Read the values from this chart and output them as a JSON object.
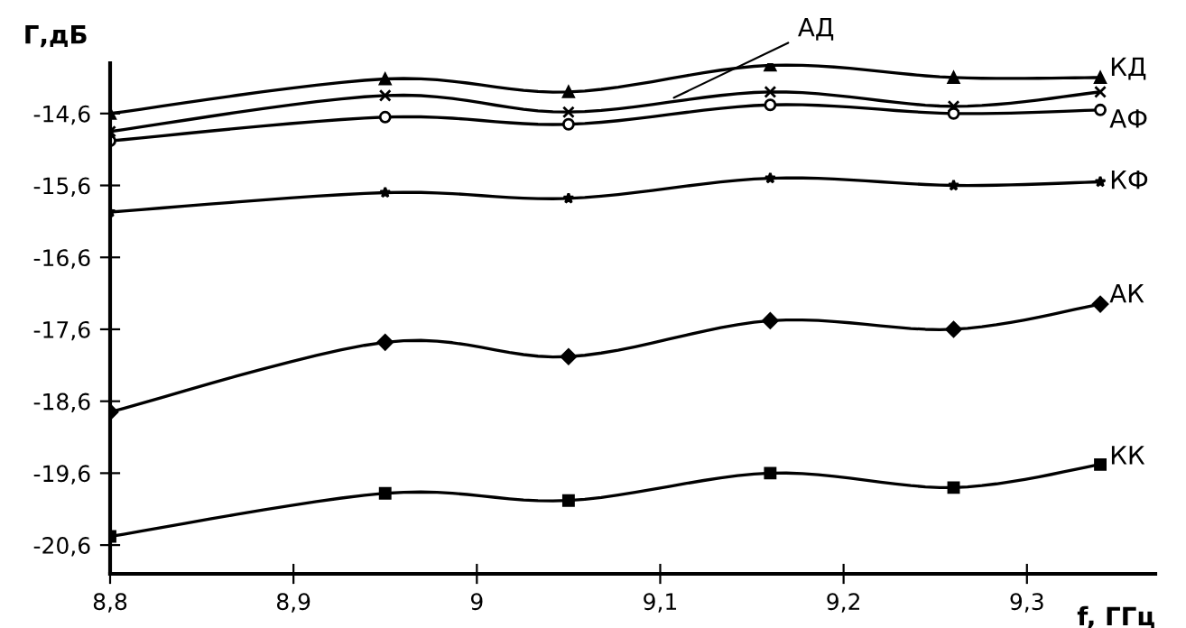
{
  "chart_data": {
    "type": "line",
    "xlabel": "f, ГГц",
    "ylabel": "Г,дБ",
    "x": [
      8.8,
      8.95,
      9.05,
      9.16,
      9.26,
      9.34
    ],
    "series": [
      {
        "name": "КД",
        "color": "#000000",
        "marker": "triangle",
        "values": [
          -14.6,
          -14.12,
          -14.3,
          -13.93,
          -14.1,
          -14.1
        ]
      },
      {
        "name": "АД",
        "color": "#000000",
        "marker": "cross",
        "values": [
          -14.85,
          -14.35,
          -14.58,
          -14.3,
          -14.5,
          -14.3
        ]
      },
      {
        "name": "АФ",
        "color": "#000000",
        "marker": "circle",
        "values": [
          -14.98,
          -14.65,
          -14.75,
          -14.48,
          -14.6,
          -14.55
        ]
      },
      {
        "name": "КФ",
        "color": "#000000",
        "marker": "star",
        "values": [
          -15.97,
          -15.7,
          -15.78,
          -15.5,
          -15.6,
          -15.55
        ]
      },
      {
        "name": "АК",
        "color": "#000000",
        "marker": "diamond",
        "values": [
          -18.75,
          -17.78,
          -17.98,
          -17.48,
          -17.6,
          -17.25
        ]
      },
      {
        "name": "КК",
        "color": "#000000",
        "marker": "square",
        "values": [
          -20.48,
          -19.88,
          -19.98,
          -19.6,
          -19.8,
          -19.48
        ]
      }
    ],
    "xlim": [
      8.8,
      9.37
    ],
    "ylim": [
      -21.0,
      -13.9
    ],
    "xticks": [
      {
        "value": 8.8,
        "label": "8,8"
      },
      {
        "value": 8.9,
        "label": "8,9"
      },
      {
        "value": 9,
        "label": "9"
      },
      {
        "value": 9.1,
        "label": "9,1"
      },
      {
        "value": 9.2,
        "label": "9,2"
      },
      {
        "value": 9.3,
        "label": "9,3"
      }
    ],
    "yticks": [
      {
        "value": -14.6,
        "label": "-14,6"
      },
      {
        "value": -15.6,
        "label": "-15,6"
      },
      {
        "value": -16.6,
        "label": "-16,6"
      },
      {
        "value": -17.6,
        "label": "-17,6"
      },
      {
        "value": -18.6,
        "label": "-18,6"
      },
      {
        "value": -19.6,
        "label": "-19,6"
      },
      {
        "value": -20.6,
        "label": "-20,6"
      }
    ],
    "grid": false,
    "legend": false,
    "line_style": "solid"
  }
}
